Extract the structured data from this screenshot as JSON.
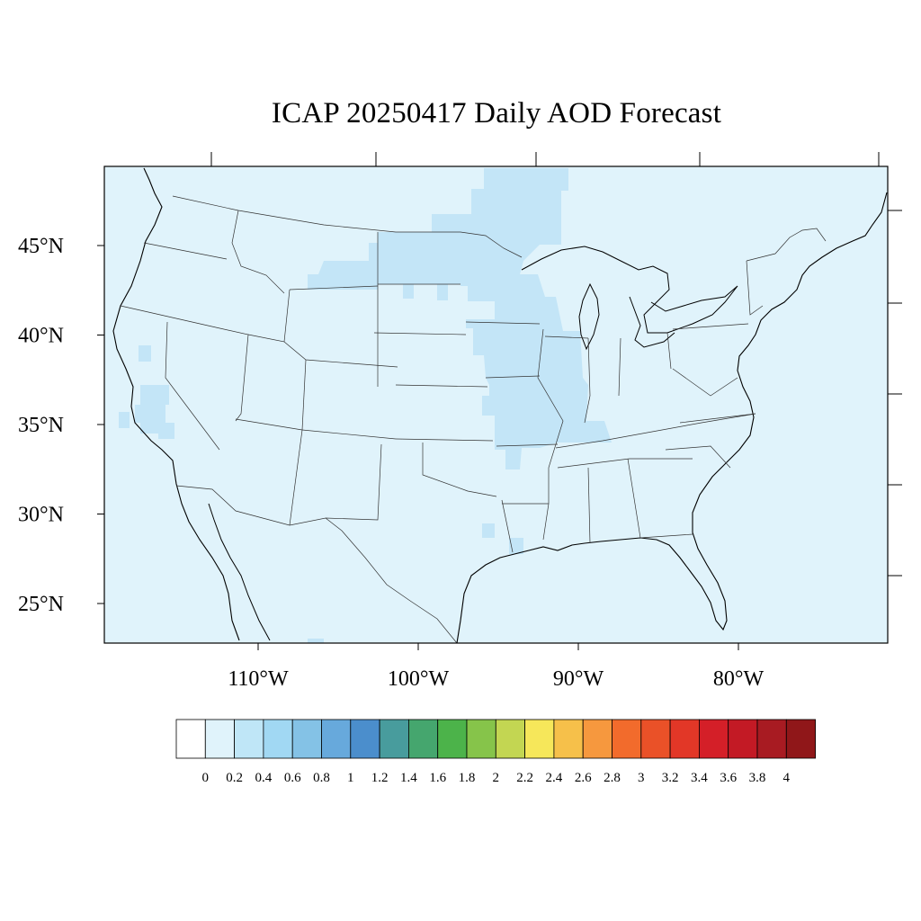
{
  "title": "ICAP 20250417 Daily AOD Forecast",
  "map": {
    "lon_range": [
      -119.3,
      -70.4
    ],
    "lat_range": [
      22.8,
      49.6
    ],
    "lat_ticks": [
      {
        "value": 45,
        "label": "45°N"
      },
      {
        "value": 40,
        "label": "40°N"
      },
      {
        "value": 35,
        "label": "35°N"
      },
      {
        "value": 30,
        "label": "30°N"
      },
      {
        "value": 25,
        "label": "25°N"
      }
    ],
    "lon_ticks": [
      {
        "value": -110,
        "label": "110°W"
      },
      {
        "value": -100,
        "label": "100°W"
      },
      {
        "value": -90,
        "label": "90°W"
      },
      {
        "value": -80,
        "label": "80°W"
      }
    ],
    "background_aod_class": "0-0.2",
    "elevated_regions_aod": "0.2-0.4"
  },
  "colorbar": {
    "labels": [
      "0",
      "0.2",
      "0.4",
      "0.6",
      "0.8",
      "1",
      "1.2",
      "1.4",
      "1.6",
      "1.8",
      "2",
      "2.2",
      "2.4",
      "2.6",
      "2.8",
      "3",
      "3.2",
      "3.4",
      "3.6",
      "3.8",
      "4"
    ],
    "colors": [
      "#ffffff",
      "#e0f3fb",
      "#bfe6f7",
      "#a1d8f3",
      "#84c2e6",
      "#67a9dc",
      "#4b8ecc",
      "#489c9d",
      "#45a66e",
      "#4cb34a",
      "#86c44a",
      "#c3d652",
      "#f6e75a",
      "#f6c04a",
      "#f6983e",
      "#f26b2c",
      "#ea5128",
      "#e23727",
      "#d41f28",
      "#c31a25",
      "#a81b22",
      "#901719"
    ]
  }
}
